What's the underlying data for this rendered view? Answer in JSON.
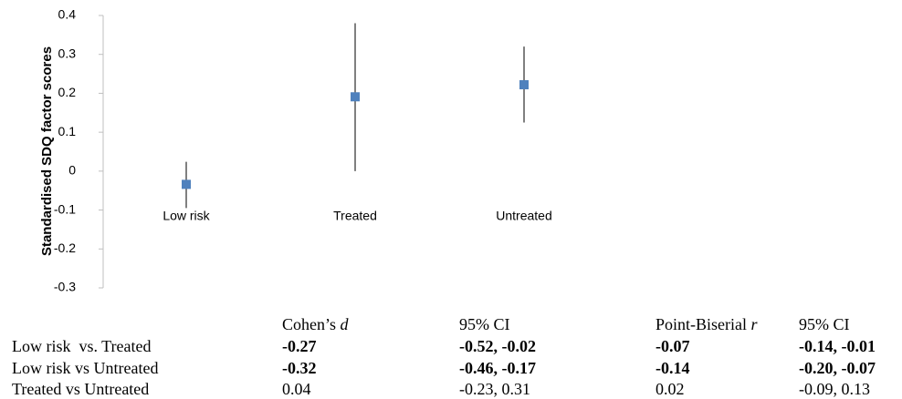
{
  "chart_data": {
    "type": "scatter",
    "ylabel": "Standardised SDQ factor scores",
    "ylim": [
      -0.3,
      0.4
    ],
    "yticks": [
      0.4,
      0.3,
      0.2,
      0.1,
      0,
      -0.1,
      -0.2,
      -0.3
    ],
    "ytick_labels": [
      "0.4",
      "0.3",
      "0.2",
      "0.1",
      "0",
      "-0.1",
      "-0.2",
      "-0.3"
    ],
    "categories": [
      "Low risk",
      "Treated",
      "Untreated"
    ],
    "values": [
      -0.034,
      0.191,
      0.222
    ],
    "error_low": [
      -0.095,
      0.0,
      0.125
    ],
    "error_high": [
      0.024,
      0.38,
      0.32
    ],
    "marker_color": "#4f81bd"
  },
  "table": {
    "headers": [
      "Cohen’s d",
      "95% CI",
      "Point-Biserial r",
      "95% CI"
    ],
    "rows": [
      {
        "label": "Low risk  vs. Treated",
        "cohens_d": "-0.27",
        "ci_d": "-0.52, -0.02",
        "r": "-0.07",
        "ci_r": "-0.14, -0.01",
        "bold": true
      },
      {
        "label": "Low risk vs Untreated",
        "cohens_d": "-0.32",
        "ci_d": "-0.46, -0.17",
        "r": "-0.14",
        "ci_r": "-0.20, -0.07",
        "bold": true
      },
      {
        "label": "Treated vs Untreated",
        "cohens_d": "0.04",
        "ci_d": "-0.23, 0.31",
        "r": "0.02",
        "ci_r": "-0.09, 0.13",
        "bold": false
      }
    ]
  }
}
